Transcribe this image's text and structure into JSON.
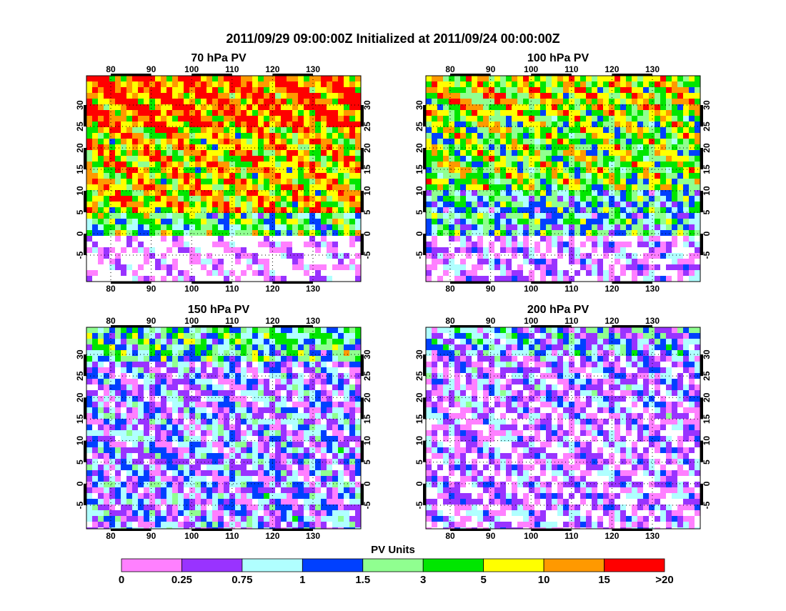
{
  "title": "2011/09/29 09:00:00Z Initialized at 2011/09/24 00:00:00Z",
  "panels": [
    {
      "title": "70 hPa PV"
    },
    {
      "title": "100 hPa PV"
    },
    {
      "title": "150 hPa PV"
    },
    {
      "title": "200 hPa PV"
    }
  ],
  "lon_ticks": [
    80,
    90,
    100,
    110,
    120,
    130
  ],
  "lat_ticks": [
    30,
    25,
    20,
    15,
    10,
    5,
    0,
    -5
  ],
  "colorbar": {
    "title": "PV Units",
    "labels": [
      "0",
      "0.25",
      "0.75",
      "1",
      "1.5",
      "3",
      "5",
      "10",
      "15",
      ">20"
    ],
    "colors": [
      "#ff80ff",
      "#9933ff",
      "#b0ffff",
      "#0040ff",
      "#90ff90",
      "#00e600",
      "#ffff00",
      "#ff9900",
      "#ff0000"
    ]
  }
}
